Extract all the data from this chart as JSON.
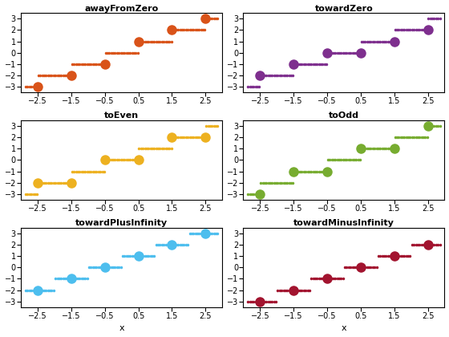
{
  "titles": [
    "awayFromZero",
    "towardZero",
    "toEven",
    "toOdd",
    "towardPlusInfinity",
    "towardMinusInfinity"
  ],
  "colors": [
    "#D95319",
    "#7E2F8E",
    "#EDB120",
    "#77AC30",
    "#4DBEEE",
    "#A2142F"
  ],
  "xlim": [
    -3.0,
    3.0
  ],
  "ylim": [
    -3.5,
    3.5
  ],
  "xticks": [
    -2.5,
    -1.5,
    -0.5,
    0.5,
    1.5,
    2.5
  ],
  "yticks": [
    -3,
    -2,
    -1,
    0,
    1,
    2,
    3
  ],
  "xlabel": "x",
  "small_ms": 3.0,
  "large_ms": 9.0,
  "n_pts_per_seg": 18
}
